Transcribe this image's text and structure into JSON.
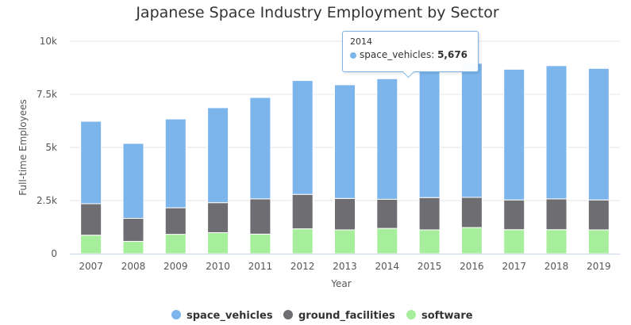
{
  "chart_data": {
    "type": "bar",
    "stacked": true,
    "title": "Japanese Space Industry Employment by Sector",
    "xlabel": "Year",
    "ylabel": "Full-time Employees",
    "ylim": [
      0,
      10000
    ],
    "yticks": [
      0,
      2500,
      5000,
      7500,
      10000
    ],
    "ytick_labels": [
      "0",
      "2.5k",
      "5k",
      "7.5k",
      "10k"
    ],
    "grid": true,
    "legend_position": "bottom",
    "categories": [
      "2007",
      "2008",
      "2009",
      "2010",
      "2011",
      "2012",
      "2013",
      "2014",
      "2015",
      "2016",
      "2017",
      "2018",
      "2019"
    ],
    "series": [
      {
        "name": "software",
        "color": "#a6ee9b",
        "values": [
          870,
          580,
          910,
          990,
          920,
          1170,
          1120,
          1190,
          1120,
          1230,
          1130,
          1130,
          1120
        ]
      },
      {
        "name": "ground_facilities",
        "color": "#6d6d72",
        "values": [
          1480,
          1080,
          1250,
          1410,
          1660,
          1620,
          1480,
          1370,
          1520,
          1420,
          1400,
          1450,
          1410
        ]
      },
      {
        "name": "space_vehicles",
        "color": "#7cb5ec",
        "values": [
          3880,
          3530,
          4180,
          4470,
          4770,
          5360,
          5350,
          5676,
          6060,
          6310,
          6150,
          6270,
          6190
        ]
      }
    ],
    "legend_order": [
      "space_vehicles",
      "ground_facilities",
      "software"
    ]
  },
  "tooltip": {
    "header": "2014",
    "series_label": "space_vehicles:",
    "value": "5,676",
    "color": "#7cb5ec"
  }
}
